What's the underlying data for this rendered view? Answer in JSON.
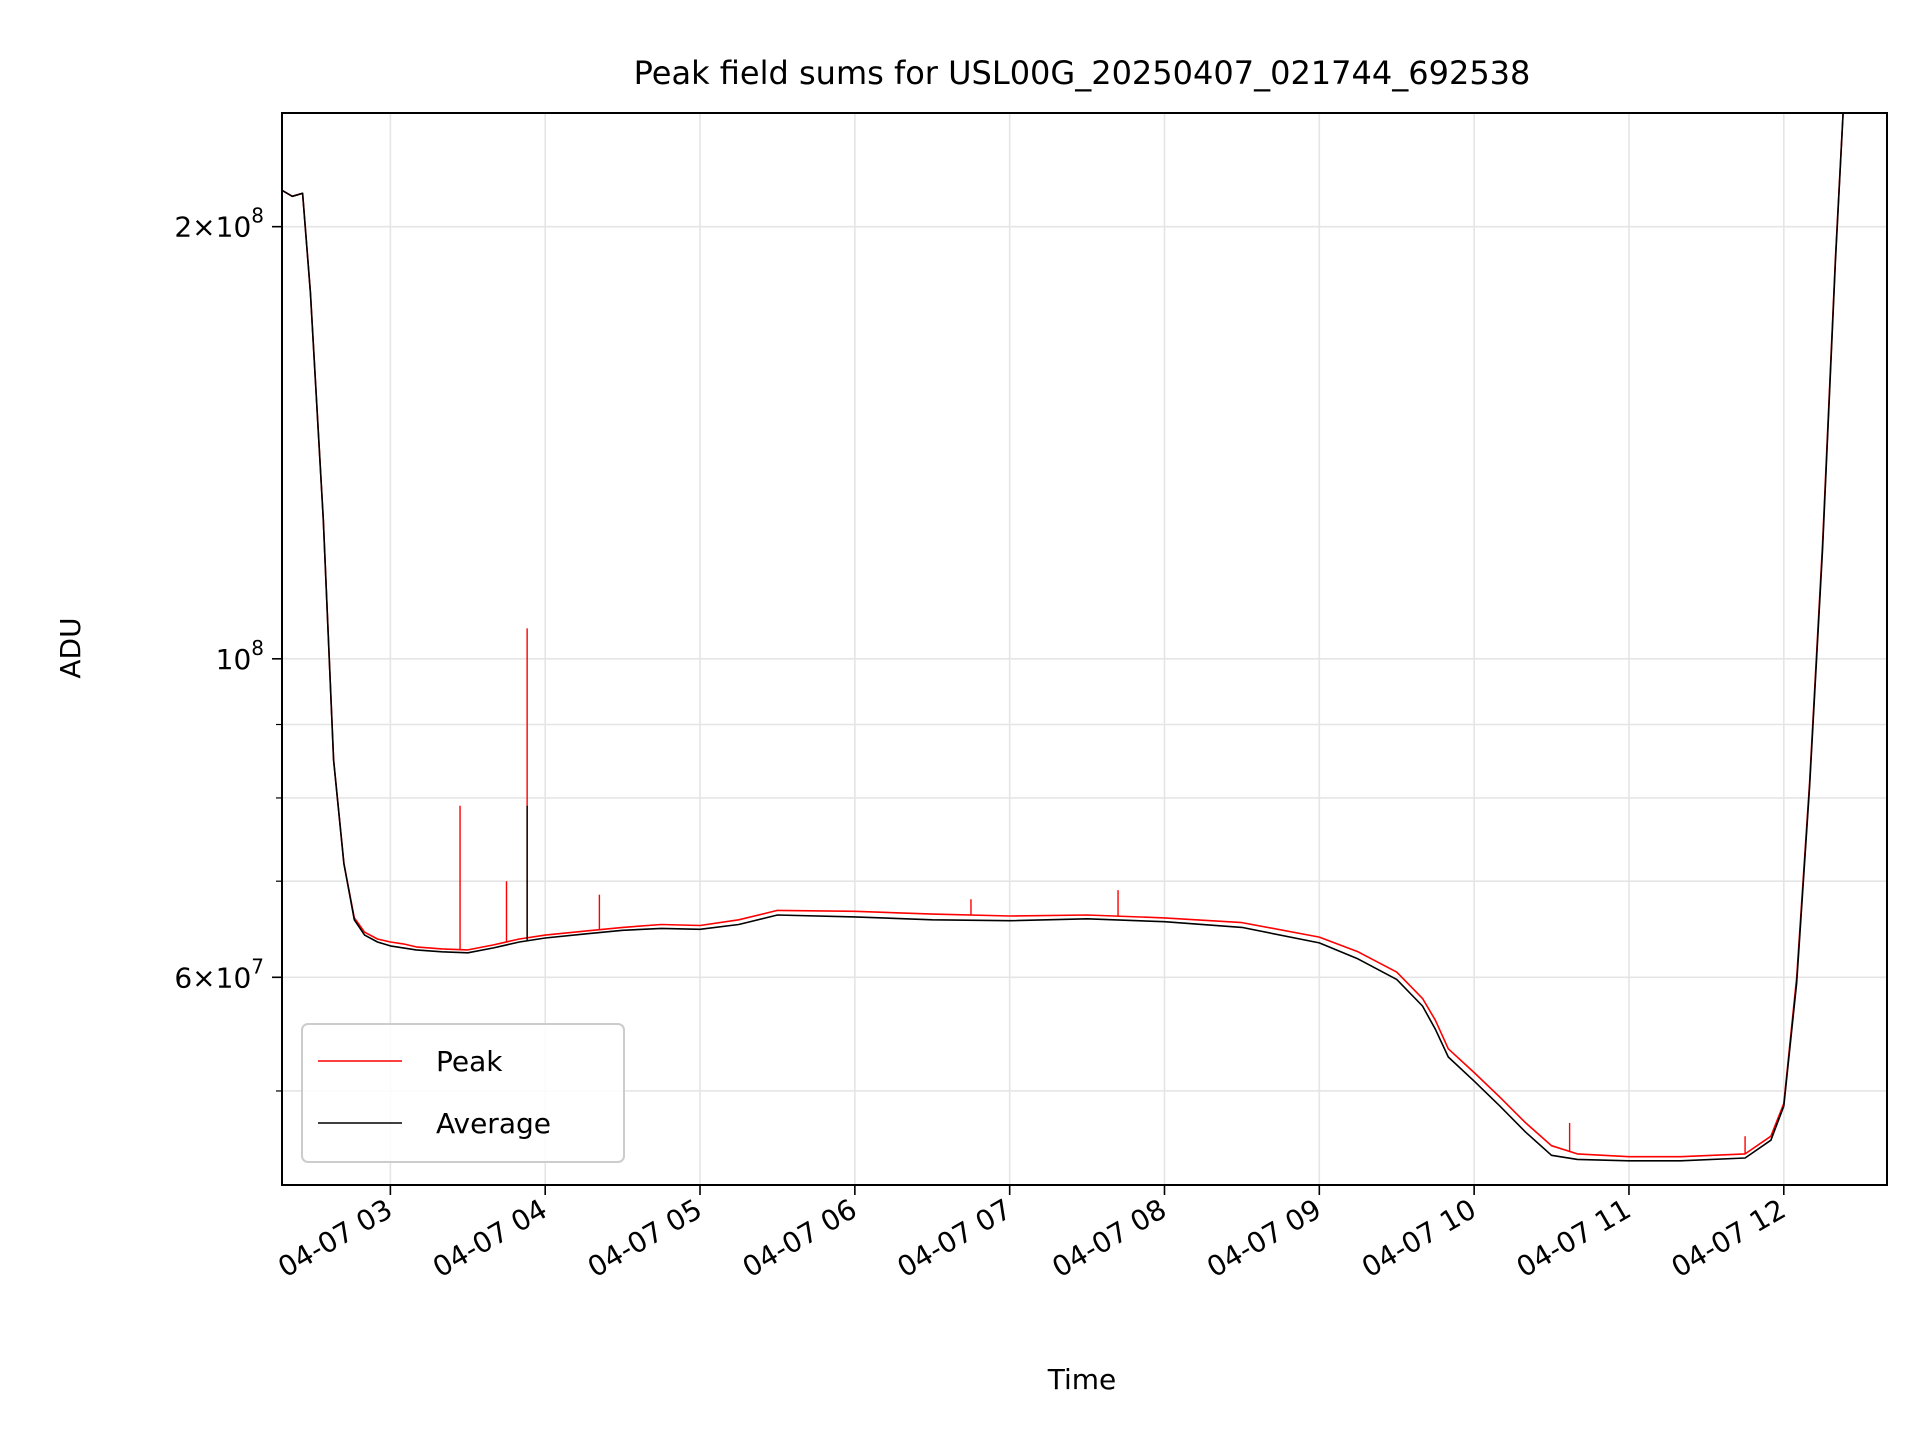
{
  "chart_data": {
    "type": "line",
    "title": "Peak field sums for USL00G_20250407_021744_692538",
    "xlabel": "Time",
    "ylabel": "ADU",
    "yscale": "log",
    "xlim": [
      "04-07 02:18",
      "04-07 12:40"
    ],
    "ylim": [
      43000000,
      240000000
    ],
    "x_ticks": [
      {
        "t": "04-07 03:00",
        "label": "04-07 03"
      },
      {
        "t": "04-07 04:00",
        "label": "04-07 04"
      },
      {
        "t": "04-07 05:00",
        "label": "04-07 05"
      },
      {
        "t": "04-07 06:00",
        "label": "04-07 06"
      },
      {
        "t": "04-07 07:00",
        "label": "04-07 07"
      },
      {
        "t": "04-07 08:00",
        "label": "04-07 08"
      },
      {
        "t": "04-07 09:00",
        "label": "04-07 09"
      },
      {
        "t": "04-07 10:00",
        "label": "04-07 10"
      },
      {
        "t": "04-07 11:00",
        "label": "04-07 11"
      },
      {
        "t": "04-07 12:00",
        "label": "04-07 12"
      }
    ],
    "y_ticks": [
      {
        "value": 200000000,
        "base": "2×10",
        "exp": "8"
      },
      {
        "value": 100000000,
        "base": "10",
        "exp": "8"
      },
      {
        "value": 60000000,
        "base": "6×10",
        "exp": "7"
      }
    ],
    "y_minor_ticks": [
      50000000,
      70000000,
      80000000,
      90000000
    ],
    "grid": true,
    "legend_position": "lower-left",
    "series": [
      {
        "name": "Peak",
        "color": "#ff0000",
        "x": [
          "04-07 02:18",
          "04-07 02:22",
          "04-07 02:26",
          "04-07 02:29",
          "04-07 02:34",
          "04-07 02:38",
          "04-07 02:42",
          "04-07 02:46",
          "04-07 02:50",
          "04-07 02:55",
          "04-07 03:00",
          "04-07 03:05",
          "04-07 03:10",
          "04-07 03:20",
          "04-07 03:30",
          "04-07 03:40",
          "04-07 03:50",
          "04-07 04:00",
          "04-07 04:15",
          "04-07 04:30",
          "04-07 04:45",
          "04-07 05:00",
          "04-07 05:15",
          "04-07 05:30",
          "04-07 06:00",
          "04-07 06:30",
          "04-07 07:00",
          "04-07 07:30",
          "04-07 08:00",
          "04-07 08:30",
          "04-07 09:00",
          "04-07 09:15",
          "04-07 09:30",
          "04-07 09:40",
          "04-07 09:45",
          "04-07 09:50",
          "04-07 10:00",
          "04-07 10:10",
          "04-07 10:20",
          "04-07 10:30",
          "04-07 10:40",
          "04-07 11:00",
          "04-07 11:20",
          "04-07 11:45",
          "04-07 11:55",
          "04-07 12:00",
          "04-07 12:05",
          "04-07 12:10",
          "04-07 12:15",
          "04-07 12:20",
          "04-07 12:23"
        ],
        "y": [
          212000000,
          210000000,
          211000000,
          180000000,
          125000000,
          85000000,
          72000000,
          66000000,
          64500000,
          63800000,
          63500000,
          63300000,
          63000000,
          62800000,
          62700000,
          63200000,
          63800000,
          64200000,
          64600000,
          65000000,
          65300000,
          65200000,
          65800000,
          66800000,
          66700000,
          66400000,
          66200000,
          66300000,
          66000000,
          65500000,
          64000000,
          62500000,
          60500000,
          58000000,
          56000000,
          53500000,
          51500000,
          49500000,
          47500000,
          45800000,
          45200000,
          45000000,
          45000000,
          45200000,
          46500000,
          49000000,
          60000000,
          82000000,
          120000000,
          190000000,
          240000000
        ]
      },
      {
        "name": "Average",
        "color": "#000000",
        "x": [
          "04-07 02:18",
          "04-07 02:22",
          "04-07 02:26",
          "04-07 02:29",
          "04-07 02:34",
          "04-07 02:38",
          "04-07 02:42",
          "04-07 02:46",
          "04-07 02:50",
          "04-07 02:55",
          "04-07 03:00",
          "04-07 03:05",
          "04-07 03:10",
          "04-07 03:20",
          "04-07 03:30",
          "04-07 03:40",
          "04-07 03:50",
          "04-07 04:00",
          "04-07 04:15",
          "04-07 04:30",
          "04-07 04:45",
          "04-07 05:00",
          "04-07 05:15",
          "04-07 05:30",
          "04-07 06:00",
          "04-07 06:30",
          "04-07 07:00",
          "04-07 07:30",
          "04-07 08:00",
          "04-07 08:30",
          "04-07 09:00",
          "04-07 09:15",
          "04-07 09:30",
          "04-07 09:40",
          "04-07 09:45",
          "04-07 09:50",
          "04-07 10:00",
          "04-07 10:10",
          "04-07 10:20",
          "04-07 10:30",
          "04-07 10:40",
          "04-07 11:00",
          "04-07 11:20",
          "04-07 11:45",
          "04-07 11:55",
          "04-07 12:00",
          "04-07 12:05",
          "04-07 12:10",
          "04-07 12:15",
          "04-07 12:20",
          "04-07 12:23"
        ],
        "y": [
          212000000,
          210000000,
          211000000,
          180000000,
          125000000,
          85000000,
          72000000,
          65800000,
          64200000,
          63500000,
          63100000,
          62900000,
          62700000,
          62500000,
          62400000,
          62900000,
          63500000,
          63900000,
          64300000,
          64700000,
          64900000,
          64800000,
          65300000,
          66300000,
          66100000,
          65800000,
          65700000,
          65900000,
          65600000,
          65000000,
          63400000,
          61800000,
          59800000,
          57300000,
          55200000,
          52800000,
          50800000,
          48800000,
          46800000,
          45100000,
          44800000,
          44700000,
          44700000,
          44900000,
          46200000,
          48800000,
          59500000,
          81500000,
          119000000,
          189000000,
          240000000
        ]
      }
    ],
    "spikes": [
      {
        "series": "Peak",
        "x": "04-07 03:27",
        "y": 79000000
      },
      {
        "series": "Peak",
        "x": "04-07 03:45",
        "y": 70000000
      },
      {
        "series": "Peak",
        "x": "04-07 03:53",
        "y": 105000000
      },
      {
        "series": "Average",
        "x": "04-07 03:53",
        "y": 79000000
      },
      {
        "series": "Peak",
        "x": "04-07 04:21",
        "y": 68500000
      },
      {
        "series": "Peak",
        "x": "04-07 06:45",
        "y": 68000000
      },
      {
        "series": "Peak",
        "x": "04-07 07:42",
        "y": 69000000
      },
      {
        "series": "Peak",
        "x": "04-07 10:37",
        "y": 47500000
      },
      {
        "series": "Peak",
        "x": "04-07 11:45",
        "y": 46500000
      }
    ]
  }
}
